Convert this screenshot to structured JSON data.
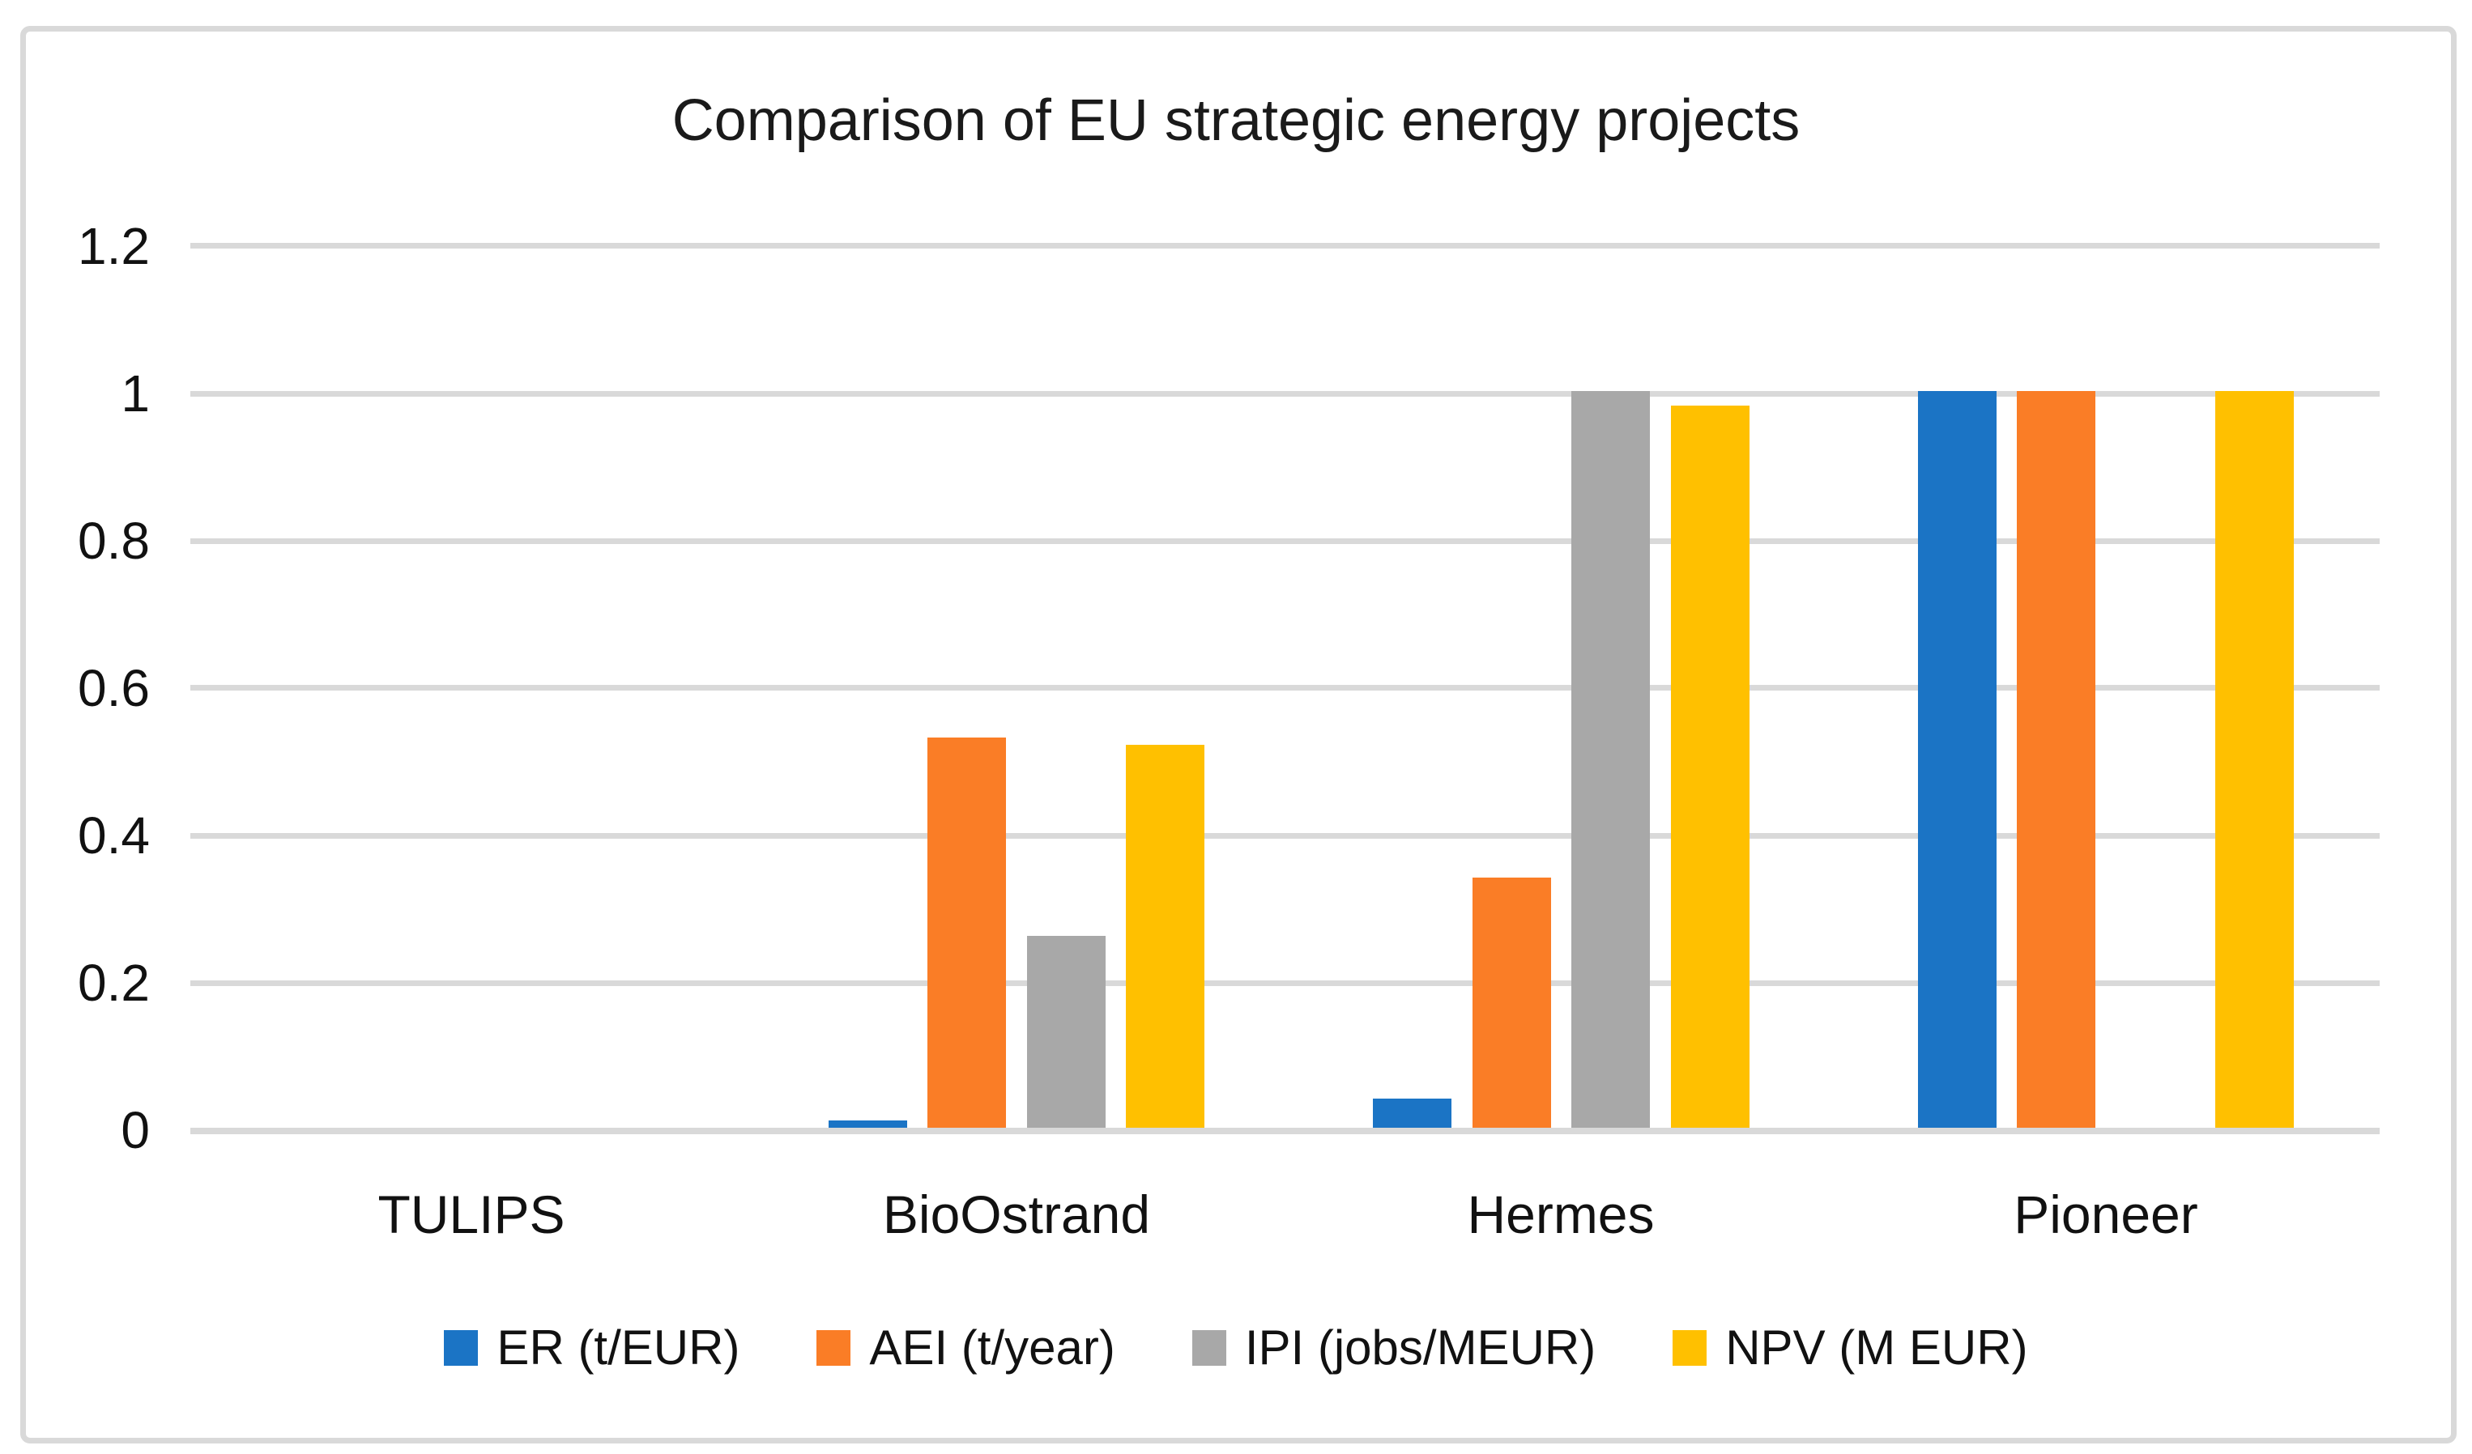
{
  "figure": {
    "title": "Comparison of EU strategic energy projects"
  },
  "chart_data": {
    "type": "bar",
    "title": "Comparison of EU strategic energy projects",
    "categories": [
      "TULIPS",
      "BioOstrand",
      "Hermes",
      "Pioneer"
    ],
    "series": [
      {
        "name": "ER (t/EUR)",
        "color": "#1B74C5",
        "values": [
          0,
          0.01,
          0.04,
          1.0
        ]
      },
      {
        "name": "AEI (t/year)",
        "color": "#FA7D26",
        "values": [
          0,
          0.53,
          0.34,
          1.0
        ]
      },
      {
        "name": "IPI (jobs/MEUR)",
        "color": "#A8A8A8",
        "values": [
          0,
          0.26,
          1.0,
          0
        ]
      },
      {
        "name": "NPV (M EUR)",
        "color": "#FFC000",
        "values": [
          0,
          0.52,
          0.98,
          1.0
        ]
      }
    ],
    "y_axis": {
      "min": 0,
      "max": 1.2,
      "tick_step": 0.2,
      "tick_labels": [
        "0",
        "0.2",
        "0.4",
        "0.6",
        "0.8",
        "1",
        "1.2"
      ]
    },
    "xlabel": "",
    "ylabel": "",
    "grid": true,
    "gridline_color": "#D9D9D9",
    "frame_color": "#D9D9D9",
    "legend_position": "bottom"
  }
}
